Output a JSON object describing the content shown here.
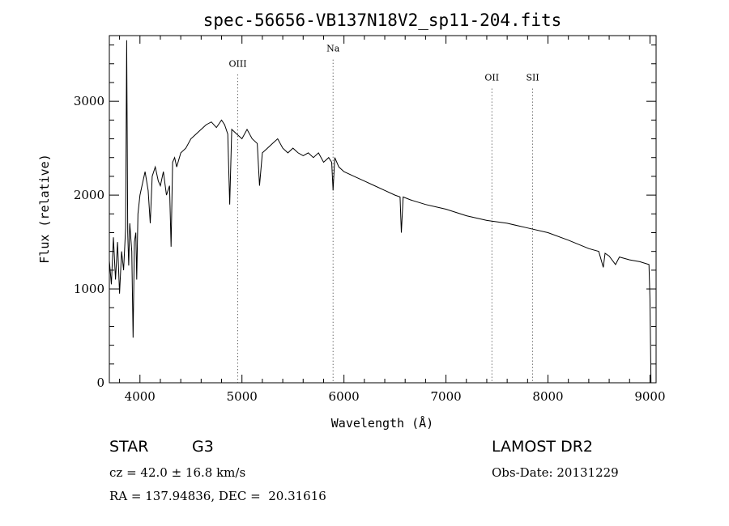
{
  "chart_data": {
    "type": "line",
    "title": "spec-56656-VB137N18V2_sp11-204.fits",
    "xlabel": "Wavelength (Å)",
    "ylabel": "Flux (relative)",
    "xlim": [
      3700,
      9060
    ],
    "ylim": [
      0,
      3700
    ],
    "xticks": [
      4000,
      5000,
      6000,
      7000,
      8000,
      9000
    ],
    "yticks": [
      0,
      1000,
      2000,
      3000
    ],
    "grid": false,
    "series": [
      {
        "x": [
          3700,
          3720,
          3740,
          3760,
          3780,
          3800,
          3820,
          3840,
          3860,
          3870,
          3880,
          3890,
          3900,
          3920,
          3933,
          3945,
          3960,
          3968,
          3980,
          4000,
          4020,
          4050,
          4080,
          4101,
          4120,
          4150,
          4180,
          4200,
          4230,
          4260,
          4290,
          4305,
          4320,
          4340,
          4360,
          4400,
          4450,
          4500,
          4550,
          4600,
          4650,
          4700,
          4750,
          4800,
          4830,
          4861,
          4880,
          4900,
          4950,
          5000,
          5050,
          5100,
          5150,
          5172,
          5200,
          5250,
          5300,
          5350,
          5400,
          5450,
          5500,
          5550,
          5600,
          5650,
          5700,
          5750,
          5800,
          5850,
          5880,
          5893,
          5910,
          5950,
          6000,
          6100,
          6200,
          6300,
          6400,
          6500,
          6550,
          6563,
          6580,
          6650,
          6800,
          7000,
          7200,
          7400,
          7600,
          7800,
          8000,
          8200,
          8400,
          8498,
          8542,
          8560,
          8600,
          8662,
          8700,
          8800,
          8900,
          8990,
          9000,
          9010
        ],
        "y": [
          1300,
          1050,
          1550,
          1100,
          1500,
          950,
          1400,
          1200,
          1650,
          3650,
          1600,
          1250,
          1700,
          1400,
          480,
          1500,
          1600,
          1100,
          1800,
          2000,
          2100,
          2250,
          2050,
          1700,
          2200,
          2300,
          2150,
          2100,
          2250,
          2000,
          2100,
          1450,
          2350,
          2400,
          2300,
          2450,
          2500,
          2600,
          2650,
          2700,
          2750,
          2780,
          2720,
          2800,
          2750,
          2650,
          1900,
          2700,
          2650,
          2600,
          2700,
          2600,
          2550,
          2100,
          2450,
          2500,
          2550,
          2600,
          2500,
          2450,
          2500,
          2450,
          2420,
          2450,
          2400,
          2450,
          2350,
          2400,
          2350,
          2050,
          2400,
          2300,
          2250,
          2200,
          2150,
          2100,
          2050,
          2000,
          1980,
          1600,
          1980,
          1950,
          1900,
          1850,
          1780,
          1730,
          1700,
          1650,
          1600,
          1520,
          1430,
          1400,
          1230,
          1380,
          1350,
          1260,
          1340,
          1310,
          1290,
          1260,
          900,
          0
        ]
      }
    ],
    "line_markers": [
      {
        "name": "OIII",
        "x": 4959,
        "label_y": 3370
      },
      {
        "name": "Na",
        "x": 5893,
        "label_y": 3530
      },
      {
        "name": "OII",
        "x": 7450,
        "label_y": 3220
      },
      {
        "name": "SII",
        "x": 7850,
        "label_y": 3220
      }
    ]
  },
  "info": {
    "class": "STAR",
    "subclass": "G3",
    "survey": "LAMOST DR2",
    "cz": "cz = 42.0 ± 16.8 km/s",
    "obs_date": "Obs-Date: 20131229",
    "coords": "RA = 137.94836, DEC =  20.31616"
  }
}
